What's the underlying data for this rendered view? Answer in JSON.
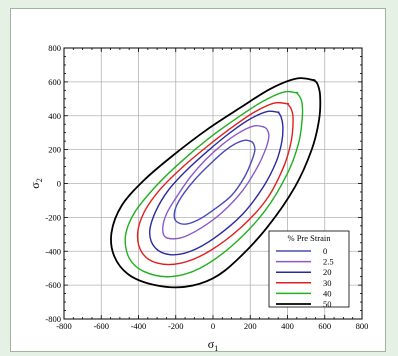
{
  "chart_data": {
    "type": "line",
    "xlabel": "σ",
    "xlabel_sub": "1",
    "ylabel": "σ",
    "ylabel_sub": "2",
    "xlim": [
      -800,
      800
    ],
    "ylim": [
      -800,
      800
    ],
    "x_ticks": [
      -800,
      -600,
      -400,
      -200,
      0,
      200,
      400,
      600,
      800
    ],
    "y_ticks": [
      -800,
      -600,
      -400,
      -200,
      0,
      200,
      400,
      600,
      800
    ],
    "grid": true,
    "legend_title": "% Pre Strain",
    "legend_position": "bottom-right",
    "series": [
      {
        "name": "0",
        "color": "#4a4ab8",
        "x": [
          200,
          170,
          120,
          60,
          -20,
          -100,
          -170,
          -205,
          -200,
          -150,
          -80,
          10,
          100,
          170,
          210,
          225,
          215,
          200
        ],
        "y": [
          250,
          255,
          235,
          190,
          110,
          20,
          -80,
          -160,
          -220,
          -240,
          -215,
          -150,
          -70,
          40,
          140,
          200,
          240,
          250
        ]
      },
      {
        "name": "2.5",
        "color": "#8a5ac8",
        "x": [
          270,
          220,
          140,
          50,
          -40,
          -120,
          -190,
          -250,
          -270,
          -250,
          -170,
          -60,
          50,
          160,
          240,
          285,
          300,
          290,
          270
        ],
        "y": [
          335,
          340,
          300,
          230,
          140,
          40,
          -70,
          -180,
          -270,
          -320,
          -320,
          -260,
          -170,
          -40,
          100,
          210,
          280,
          320,
          335
        ]
      },
      {
        "name": "20",
        "color": "#2a2aa0",
        "x": [
          350,
          290,
          190,
          80,
          -30,
          -140,
          -240,
          -310,
          -340,
          -310,
          -230,
          -120,
          10,
          160,
          270,
          340,
          370,
          375,
          365,
          350
        ],
        "y": [
          420,
          425,
          375,
          290,
          190,
          80,
          -40,
          -170,
          -290,
          -380,
          -420,
          -400,
          -320,
          -180,
          -20,
          130,
          250,
          340,
          395,
          420
        ]
      },
      {
        "name": "30",
        "color": "#e02020",
        "x": [
          400,
          330,
          220,
          100,
          -30,
          -160,
          -280,
          -370,
          -405,
          -380,
          -300,
          -170,
          -20,
          150,
          290,
          380,
          420,
          430,
          420,
          400
        ],
        "y": [
          470,
          475,
          420,
          330,
          220,
          100,
          -30,
          -170,
          -300,
          -410,
          -470,
          -470,
          -400,
          -260,
          -90,
          100,
          250,
          380,
          440,
          470
        ]
      },
      {
        "name": "40",
        "color": "#20b020",
        "x": [
          450,
          380,
          260,
          120,
          -30,
          -180,
          -310,
          -420,
          -470,
          -450,
          -370,
          -230,
          -70,
          110,
          280,
          400,
          460,
          480,
          475,
          450
        ],
        "y": [
          535,
          540,
          480,
          380,
          260,
          120,
          -20,
          -170,
          -310,
          -440,
          -520,
          -550,
          -500,
          -360,
          -160,
          60,
          240,
          400,
          490,
          535
        ]
      },
      {
        "name": "50",
        "color": "#000000",
        "x": [
          540,
          450,
          310,
          150,
          -30,
          -210,
          -370,
          -490,
          -545,
          -530,
          -450,
          -310,
          -150,
          0,
          130,
          290,
          440,
          530,
          570,
          575,
          560,
          540
        ],
        "y": [
          610,
          620,
          560,
          450,
          320,
          170,
          20,
          -130,
          -290,
          -430,
          -540,
          -600,
          -610,
          -560,
          -450,
          -260,
          -20,
          200,
          380,
          520,
          590,
          610
        ]
      }
    ]
  }
}
